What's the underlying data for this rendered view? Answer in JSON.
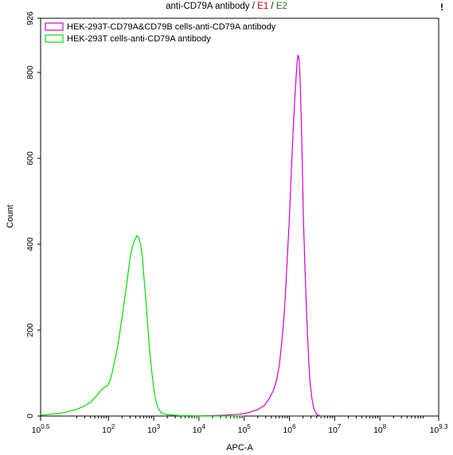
{
  "chart_data": {
    "type": "line",
    "title": "anti-CD79A antibody",
    "title_gates": [
      {
        "label": "E1",
        "color": "#c00000"
      },
      {
        "label": "E2",
        "color": "#1a7a1a"
      }
    ],
    "corner_mark": "!",
    "xlabel": "APC-A",
    "ylabel": "Count",
    "x_scale": "log10",
    "xlim": [
      0.5,
      9.3
    ],
    "ylim": [
      0,
      926
    ],
    "x_ticks": [
      {
        "base": "10",
        "exp": "0.5",
        "value": 0.5
      },
      {
        "base": "10",
        "exp": "2",
        "value": 2
      },
      {
        "base": "10",
        "exp": "3",
        "value": 3
      },
      {
        "base": "10",
        "exp": "4",
        "value": 4
      },
      {
        "base": "10",
        "exp": "5",
        "value": 5
      },
      {
        "base": "10",
        "exp": "6",
        "value": 6
      },
      {
        "base": "10",
        "exp": "7",
        "value": 7
      },
      {
        "base": "10",
        "exp": "8",
        "value": 8
      },
      {
        "base": "10",
        "exp": "9.3",
        "value": 9.3
      }
    ],
    "y_ticks": [
      0,
      200,
      400,
      600,
      800,
      926
    ],
    "legend_position": "top-left",
    "grid": false,
    "series": [
      {
        "name": "HEK-293T-CD79A&CD79B cells-anti-CD79A antibody",
        "color": "#cc00cc",
        "x": [
          3.9,
          4.3,
          4.6,
          4.9,
          5.1,
          5.3,
          5.45,
          5.55,
          5.65,
          5.72,
          5.78,
          5.83,
          5.88,
          5.92,
          5.96,
          6.0,
          6.03,
          6.06,
          6.09,
          6.12,
          6.15,
          6.17,
          6.19,
          6.21,
          6.23,
          6.25,
          6.27,
          6.29,
          6.31,
          6.34,
          6.37,
          6.4,
          6.43,
          6.46,
          6.5,
          6.54,
          6.58,
          6.62,
          6.66,
          6.7,
          6.75
        ],
        "y": [
          0,
          1,
          2,
          4,
          8,
          15,
          25,
          40,
          60,
          85,
          120,
          170,
          230,
          300,
          380,
          460,
          540,
          610,
          680,
          740,
          790,
          825,
          840,
          835,
          800,
          740,
          660,
          560,
          460,
          360,
          270,
          190,
          125,
          75,
          40,
          18,
          8,
          3,
          1,
          0,
          0
        ]
      },
      {
        "name": "HEK-293T cells-anti-CD79A antibody",
        "color": "#00dd00",
        "x": [
          0.5,
          0.7,
          0.9,
          1.1,
          1.3,
          1.45,
          1.6,
          1.72,
          1.82,
          1.9,
          1.97,
          2.03,
          2.08,
          2.13,
          2.18,
          2.23,
          2.28,
          2.33,
          2.38,
          2.43,
          2.48,
          2.53,
          2.58,
          2.63,
          2.67,
          2.71,
          2.75,
          2.78,
          2.82,
          2.86,
          2.9,
          2.95,
          3.0,
          3.05,
          3.1,
          3.15,
          3.2,
          3.3,
          3.45,
          3.6,
          3.8,
          4.0,
          4.3,
          4.6,
          5.0
        ],
        "y": [
          2,
          4,
          6,
          10,
          16,
          22,
          32,
          45,
          58,
          66,
          70,
          80,
          100,
          125,
          150,
          180,
          215,
          250,
          290,
          330,
          370,
          395,
          410,
          420,
          415,
          400,
          370,
          330,
          280,
          225,
          165,
          110,
          65,
          35,
          18,
          10,
          6,
          3,
          2,
          1,
          1,
          0,
          0,
          0,
          0
        ]
      }
    ]
  }
}
